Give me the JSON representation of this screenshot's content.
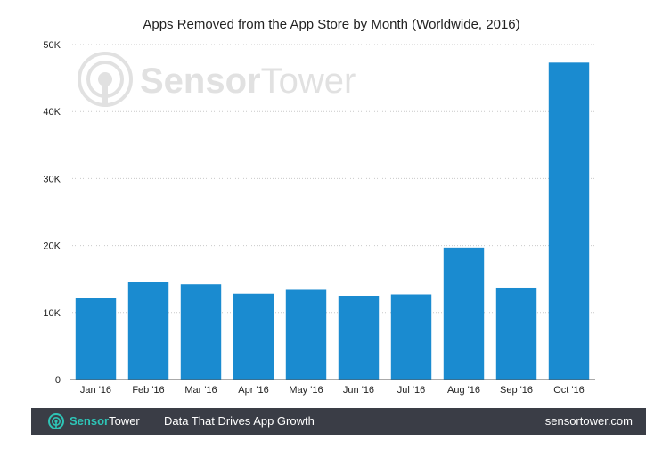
{
  "chart_data": {
    "type": "bar",
    "title": "Apps Removed from the App Store by Month (Worldwide, 2016)",
    "categories": [
      "Jan '16",
      "Feb '16",
      "Mar '16",
      "Apr '16",
      "May '16",
      "Jun '16",
      "Jul '16",
      "Aug '16",
      "Sep '16",
      "Oct '16"
    ],
    "values": [
      12200,
      14600,
      14200,
      12800,
      13500,
      12500,
      12700,
      19700,
      13700,
      47300
    ],
    "ylim": [
      0,
      50000
    ],
    "yticks": [
      0,
      10000,
      20000,
      30000,
      40000,
      50000
    ],
    "ytick_labels": [
      "0",
      "10K",
      "20K",
      "30K",
      "40K",
      "50K"
    ],
    "xlabel": "",
    "ylabel": "",
    "grid": true,
    "legend": "none",
    "bar_color": "#1a8bd0"
  },
  "watermark": {
    "brand_bold": "Sensor",
    "brand_light": "Tower"
  },
  "footer": {
    "brand_bold": "Sensor",
    "brand_light": "Tower",
    "tagline": "Data That Drives App Growth",
    "url": "sensortower.com",
    "background": "#3a3d46",
    "accent": "#2ec4b6"
  }
}
